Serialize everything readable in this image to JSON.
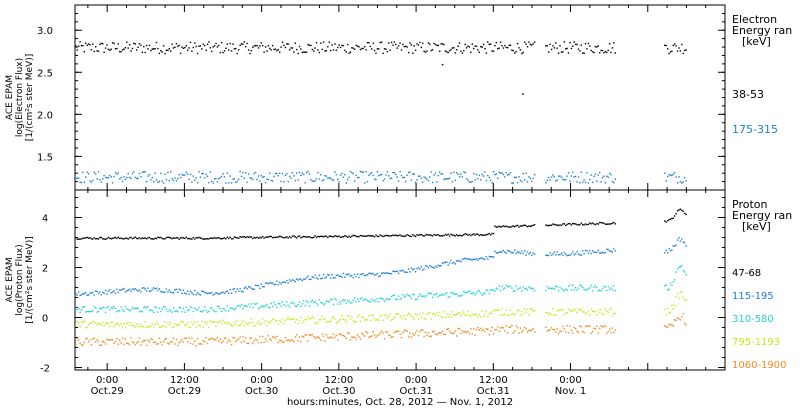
{
  "chart_data": [
    {
      "type": "scatter",
      "panel": "electron",
      "ylabel_lines": [
        "ACE EPAM",
        "log(Electron Flux)",
        "[1/(cm²s ster MeV)]"
      ],
      "legend_title_lines": [
        "Electron",
        "Energy ran",
        "[keV]"
      ],
      "ylim": [
        1.1,
        3.3
      ],
      "yticks": [
        1.5,
        2.0,
        2.5,
        3.0
      ],
      "ytick_labels": [
        "1.5",
        "2.0",
        "2.5",
        "3.0"
      ],
      "series": [
        {
          "name": "38-53",
          "color": "#000000",
          "base": 2.8,
          "amp": 0.07
        },
        {
          "name": "175-315",
          "color": "#1f7fd6",
          "base": 1.26,
          "amp": 0.07
        }
      ],
      "data_gaps_hours": [
        [
          66.3,
          68.0
        ],
        [
          79.0,
          86.5
        ]
      ],
      "spikes": [
        {
          "series": 0,
          "t": 52.0,
          "v": 2.6
        },
        {
          "series": 0,
          "t": 64.5,
          "v": 2.25
        }
      ]
    },
    {
      "type": "scatter",
      "panel": "proton",
      "ylabel_lines": [
        "ACE EPAM",
        "log(Proton Flux)",
        "[1/(cm²s ster MeV)]"
      ],
      "legend_title_lines": [
        "Proton",
        "Energy ran",
        "[keV]"
      ],
      "ylim": [
        -2.1,
        5.1
      ],
      "yticks": [
        -2,
        0,
        2,
        4
      ],
      "ytick_labels": [
        "-2",
        "0",
        "2",
        "4"
      ],
      "series": [
        {
          "name": "47-68",
          "color": "#000000"
        },
        {
          "name": "115-195",
          "color": "#1f7fd6"
        },
        {
          "name": "310-580",
          "color": "#22d3cc"
        },
        {
          "name": "795-1193",
          "color": "#c6e81c"
        },
        {
          "name": "1060-1900",
          "color": "#f08a1c"
        }
      ],
      "data_gaps_hours": [
        [
          66.3,
          68.0
        ],
        [
          79.0,
          86.5
        ]
      ]
    }
  ],
  "xaxis": {
    "xlim_hours": [
      -5.0,
      96.0
    ],
    "ticks": [
      {
        "t": 0,
        "time": "0:00",
        "date": "Oct.29"
      },
      {
        "t": 12,
        "time": "12:00",
        "date": "Oct.29"
      },
      {
        "t": 24,
        "time": "0:00",
        "date": "Oct.30"
      },
      {
        "t": 36,
        "time": "12:00",
        "date": "Oct.30"
      },
      {
        "t": 48,
        "time": "0:00",
        "date": "Oct.31"
      },
      {
        "t": 60,
        "time": "12:00",
        "date": "Oct.31"
      },
      {
        "t": 72,
        "time": "0:00",
        "date": "Nov. 1"
      }
    ],
    "label": "hours:minutes, Oct. 28, 2012 — Nov. 1, 2012"
  }
}
